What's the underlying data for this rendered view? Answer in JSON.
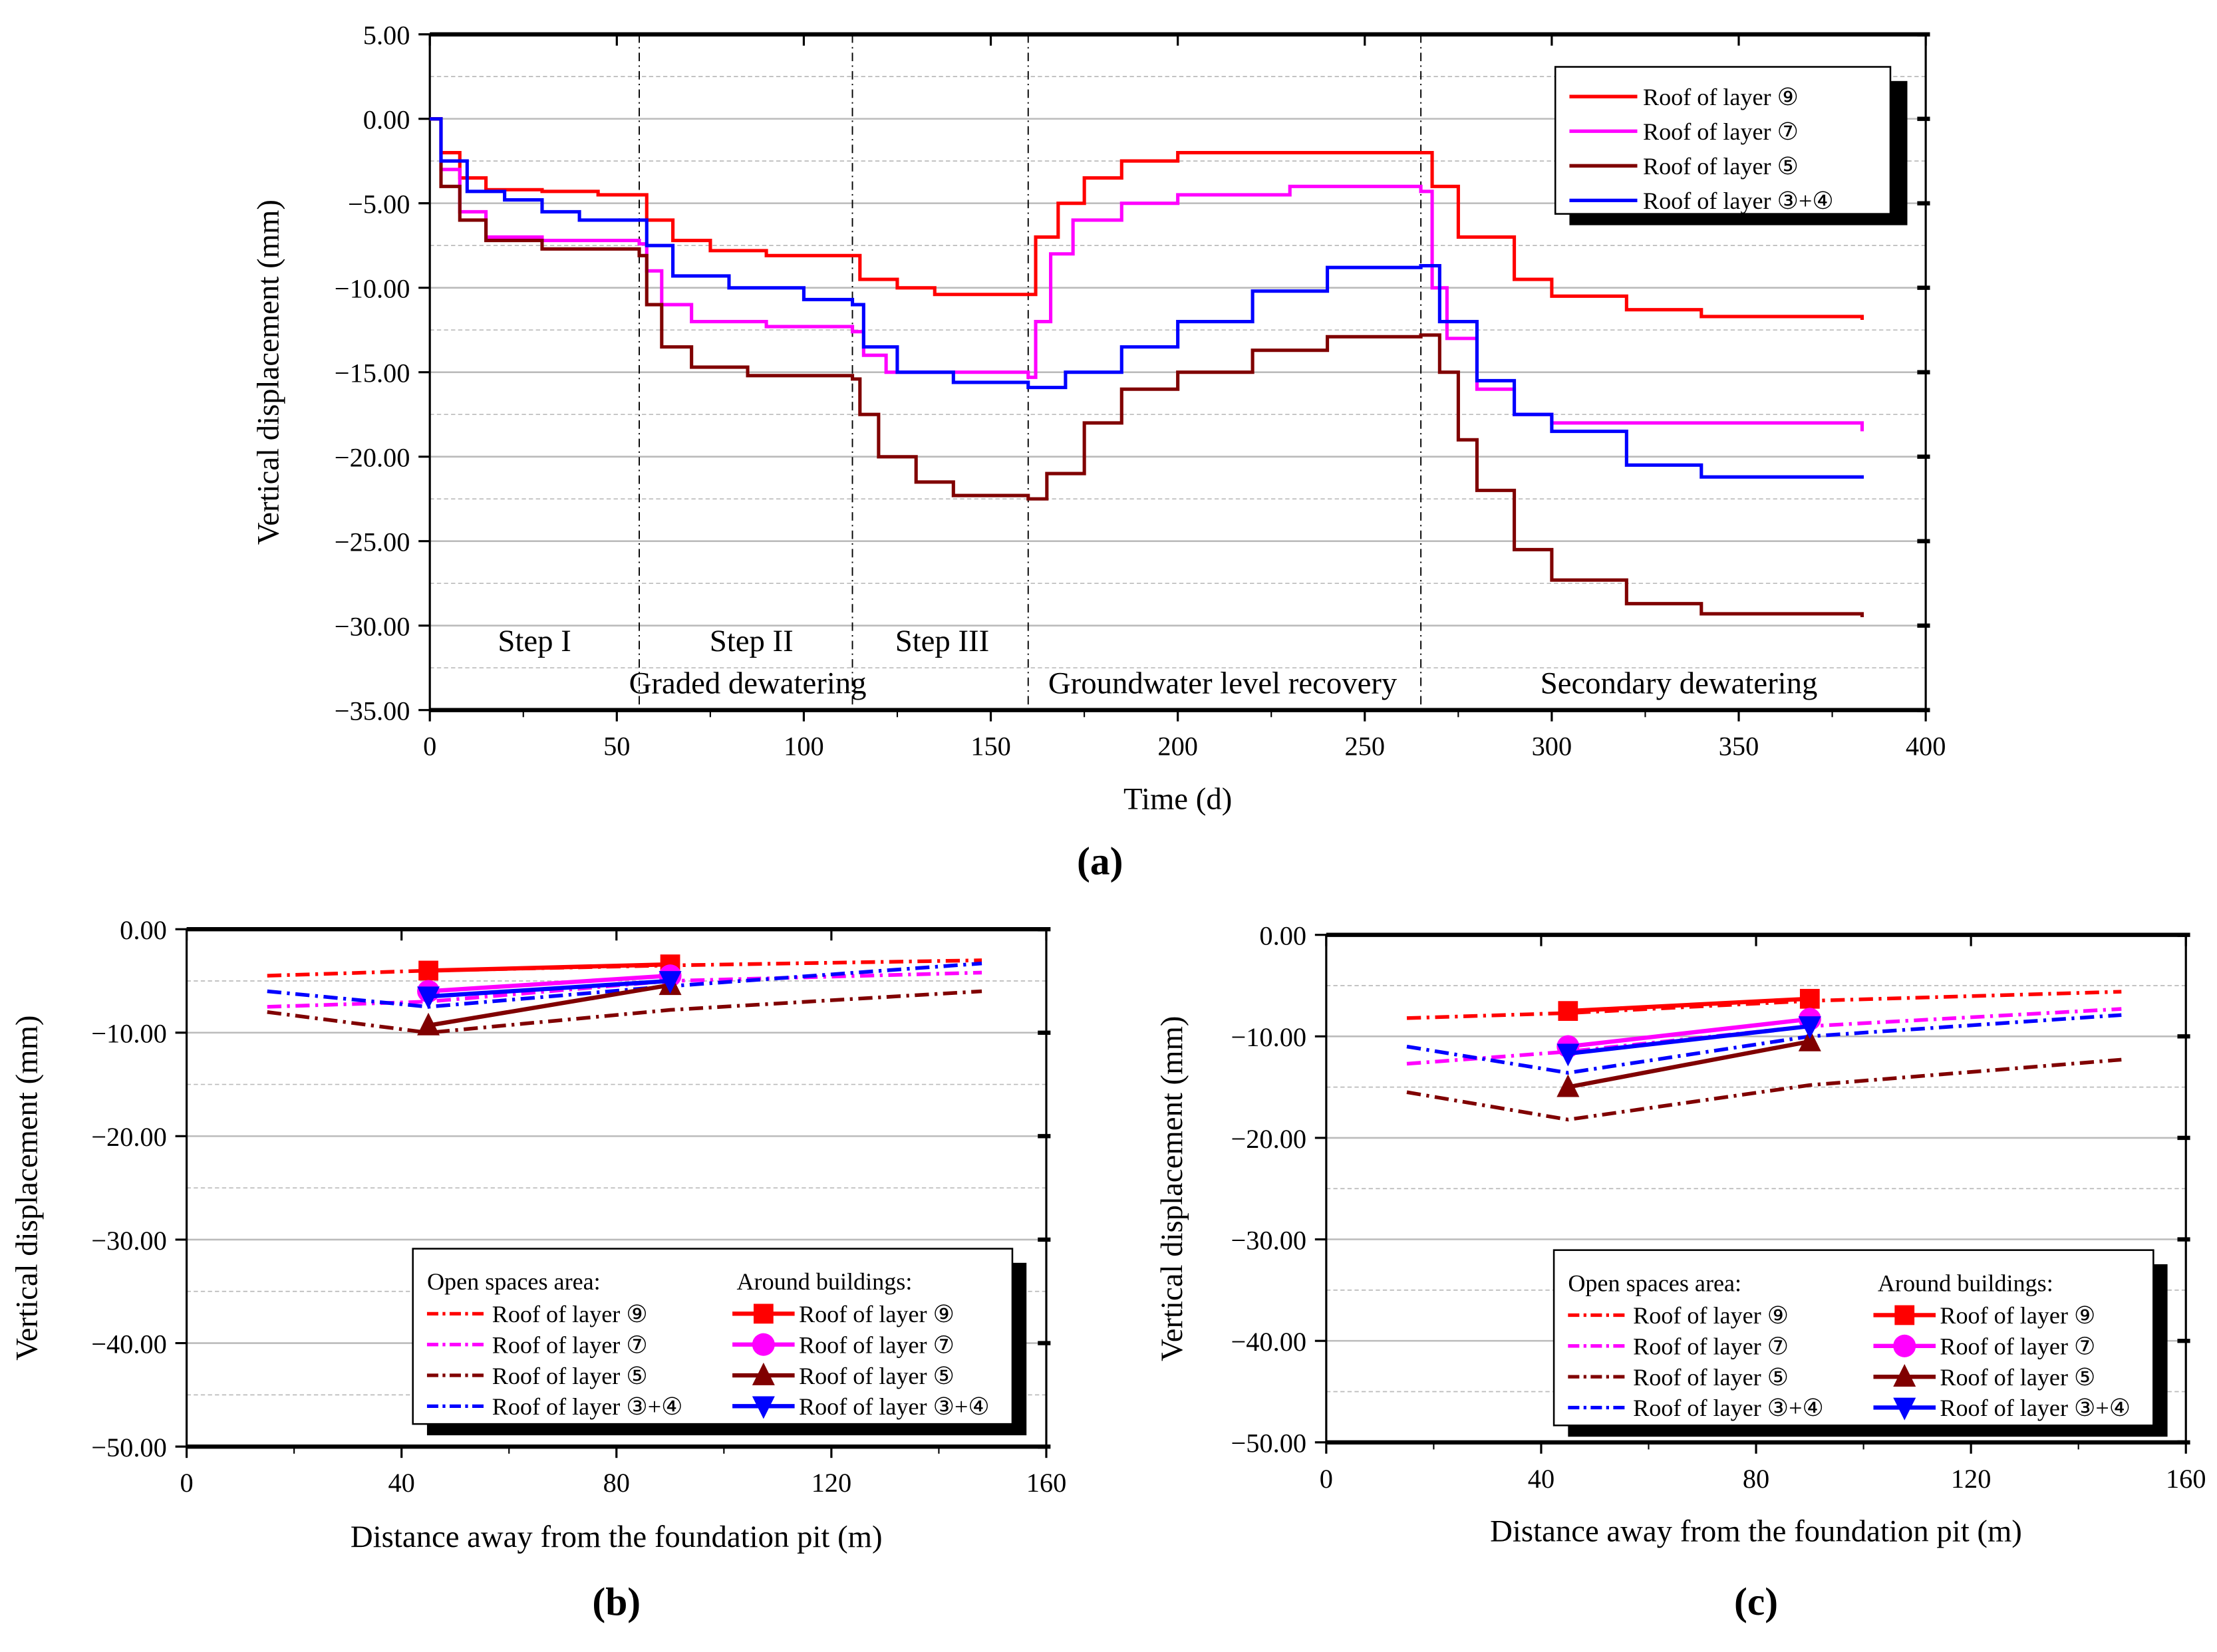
{
  "colors": {
    "layer9": "#ff0000",
    "layer7": "#ff00ff",
    "layer5": "#800000",
    "layer34": "#0000ff"
  },
  "chart_data": [
    {
      "id": "a",
      "type": "line",
      "panel_label": "(a)",
      "xlabel": "Time (d)",
      "ylabel": "Vertical displacement (mm)",
      "xlim": [
        0,
        400
      ],
      "ylim": [
        -35,
        5
      ],
      "xticks": [
        0,
        50,
        100,
        150,
        200,
        250,
        300,
        350,
        400
      ],
      "yticks": [
        5,
        0,
        -5,
        -10,
        -15,
        -20,
        -25,
        -30,
        -35
      ],
      "ytick_labels": [
        "5.00",
        "0.00",
        "−5.00",
        "−10.00",
        "−15.00",
        "−20.00",
        "−25.00",
        "−30.00",
        "−35.00"
      ],
      "grid": true,
      "legend_position": "top-right",
      "phase_boundaries": [
        56,
        113,
        160,
        265
      ],
      "step_labels": [
        {
          "text": "Step I",
          "x": 28
        },
        {
          "text": "Step II",
          "x": 86
        },
        {
          "text": "Step III",
          "x": 137
        }
      ],
      "phase_labels": [
        {
          "text": "Graded dewatering",
          "x": 85
        },
        {
          "text": "Groundwater level recovery",
          "x": 212
        },
        {
          "text": "Secondary dewatering",
          "x": 334
        }
      ],
      "series": [
        {
          "name": "Roof of layer ⑨",
          "color_key": "layer9",
          "points": [
            [
              0,
              0
            ],
            [
              3,
              -2
            ],
            [
              8,
              -3.5
            ],
            [
              15,
              -4.2
            ],
            [
              30,
              -4.3
            ],
            [
              45,
              -4.5
            ],
            [
              56,
              -4.5
            ],
            [
              58,
              -6
            ],
            [
              65,
              -7.2
            ],
            [
              75,
              -7.8
            ],
            [
              90,
              -8.1
            ],
            [
              113,
              -8.1
            ],
            [
              115,
              -9.5
            ],
            [
              125,
              -10
            ],
            [
              135,
              -10.4
            ],
            [
              160,
              -10.4
            ],
            [
              162,
              -7
            ],
            [
              168,
              -5
            ],
            [
              175,
              -3.5
            ],
            [
              185,
              -2.5
            ],
            [
              200,
              -2
            ],
            [
              265,
              -2
            ],
            [
              268,
              -4
            ],
            [
              275,
              -7
            ],
            [
              290,
              -9.5
            ],
            [
              300,
              -10.5
            ],
            [
              320,
              -11.3
            ],
            [
              340,
              -11.7
            ],
            [
              383,
              -11.9
            ]
          ]
        },
        {
          "name": "Roof of layer ⑦",
          "color_key": "layer7",
          "points": [
            [
              0,
              0
            ],
            [
              3,
              -3
            ],
            [
              8,
              -5.5
            ],
            [
              15,
              -7
            ],
            [
              30,
              -7.2
            ],
            [
              56,
              -7.4
            ],
            [
              58,
              -9
            ],
            [
              62,
              -11
            ],
            [
              70,
              -12
            ],
            [
              90,
              -12.3
            ],
            [
              113,
              -12.6
            ],
            [
              116,
              -14
            ],
            [
              122,
              -15
            ],
            [
              130,
              -15
            ],
            [
              160,
              -15.3
            ],
            [
              162,
              -12
            ],
            [
              166,
              -8
            ],
            [
              172,
              -6
            ],
            [
              185,
              -5
            ],
            [
              200,
              -4.5
            ],
            [
              230,
              -4
            ],
            [
              265,
              -4.3
            ],
            [
              268,
              -10
            ],
            [
              272,
              -13
            ],
            [
              280,
              -16
            ],
            [
              290,
              -17.5
            ],
            [
              300,
              -18
            ],
            [
              383,
              -18.5
            ]
          ]
        },
        {
          "name": "Roof of layer ⑤",
          "color_key": "layer5",
          "points": [
            [
              0,
              0
            ],
            [
              3,
              -4
            ],
            [
              8,
              -6
            ],
            [
              15,
              -7.2
            ],
            [
              30,
              -7.7
            ],
            [
              56,
              -8.1
            ],
            [
              58,
              -11
            ],
            [
              62,
              -13.5
            ],
            [
              70,
              -14.7
            ],
            [
              85,
              -15.2
            ],
            [
              113,
              -15.4
            ],
            [
              115,
              -17.5
            ],
            [
              120,
              -20
            ],
            [
              130,
              -21.5
            ],
            [
              140,
              -22.3
            ],
            [
              160,
              -22.5
            ],
            [
              165,
              -21
            ],
            [
              175,
              -18
            ],
            [
              185,
              -16
            ],
            [
              200,
              -15
            ],
            [
              220,
              -13.7
            ],
            [
              240,
              -12.9
            ],
            [
              265,
              -12.8
            ],
            [
              270,
              -15
            ],
            [
              275,
              -19
            ],
            [
              280,
              -22
            ],
            [
              290,
              -25.5
            ],
            [
              300,
              -27.3
            ],
            [
              320,
              -28.7
            ],
            [
              340,
              -29.3
            ],
            [
              383,
              -29.5
            ]
          ]
        },
        {
          "name": "Roof of layer ③+④",
          "color_key": "layer34",
          "points": [
            [
              0,
              0
            ],
            [
              3,
              -2.5
            ],
            [
              10,
              -4.3
            ],
            [
              20,
              -4.8
            ],
            [
              30,
              -5.5
            ],
            [
              40,
              -6
            ],
            [
              56,
              -6
            ],
            [
              58,
              -7.5
            ],
            [
              65,
              -9.3
            ],
            [
              80,
              -10
            ],
            [
              100,
              -10.7
            ],
            [
              113,
              -11
            ],
            [
              116,
              -13.5
            ],
            [
              125,
              -15
            ],
            [
              140,
              -15.6
            ],
            [
              160,
              -15.9
            ],
            [
              170,
              -15
            ],
            [
              185,
              -13.5
            ],
            [
              200,
              -12
            ],
            [
              220,
              -10.2
            ],
            [
              240,
              -8.8
            ],
            [
              265,
              -8.7
            ],
            [
              270,
              -12
            ],
            [
              280,
              -15.5
            ],
            [
              290,
              -17.5
            ],
            [
              300,
              -18.5
            ],
            [
              320,
              -20.5
            ],
            [
              340,
              -21.2
            ],
            [
              383,
              -21.3
            ]
          ]
        }
      ]
    },
    {
      "id": "b",
      "type": "line",
      "panel_label": "(b)",
      "xlabel": "Distance away from the foundation pit (m)",
      "ylabel": "Vertical displacement (mm)",
      "xlim": [
        0,
        160
      ],
      "ylim": [
        -50,
        0
      ],
      "xticks": [
        0,
        40,
        80,
        120,
        160
      ],
      "yticks": [
        0,
        -10,
        -20,
        -30,
        -40,
        -50
      ],
      "ytick_labels": [
        "0.00",
        "−10.00",
        "−20.00",
        "−30.00",
        "−40.00",
        "−50.00"
      ],
      "grid": true,
      "legend_position": "bottom-right",
      "legend_heads": [
        "Open spaces area:",
        "Around buildings:"
      ],
      "open_series": [
        {
          "name": "Roof of layer ⑨",
          "color_key": "layer9",
          "points": [
            [
              15,
              -4.5
            ],
            [
              45,
              -4
            ],
            [
              90,
              -3.5
            ],
            [
              148,
              -3
            ]
          ]
        },
        {
          "name": "Roof of layer ⑦",
          "color_key": "layer7",
          "points": [
            [
              15,
              -7.5
            ],
            [
              45,
              -7
            ],
            [
              90,
              -5
            ],
            [
              148,
              -4.2
            ]
          ]
        },
        {
          "name": "Roof of layer ⑤",
          "color_key": "layer5",
          "points": [
            [
              15,
              -8
            ],
            [
              45,
              -10
            ],
            [
              90,
              -7.8
            ],
            [
              148,
              -6
            ]
          ]
        },
        {
          "name": "Roof of layer ③+④",
          "color_key": "layer34",
          "points": [
            [
              15,
              -6
            ],
            [
              45,
              -7.5
            ],
            [
              90,
              -5.5
            ],
            [
              148,
              -3.3
            ]
          ]
        }
      ],
      "building_series": [
        {
          "name": "Roof of layer ⑨",
          "color_key": "layer9",
          "marker": "square",
          "points": [
            [
              45,
              -4
            ],
            [
              90,
              -3.4
            ]
          ]
        },
        {
          "name": "Roof of layer ⑦",
          "color_key": "layer7",
          "marker": "circle",
          "points": [
            [
              45,
              -6
            ],
            [
              90,
              -4.5
            ]
          ]
        },
        {
          "name": "Roof of layer ⑤",
          "color_key": "layer5",
          "marker": "triangle-up",
          "points": [
            [
              45,
              -9.3
            ],
            [
              90,
              -5.4
            ]
          ]
        },
        {
          "name": "Roof of layer ③+④",
          "color_key": "layer34",
          "marker": "triangle-down",
          "points": [
            [
              45,
              -6.5
            ],
            [
              90,
              -5
            ]
          ]
        }
      ]
    },
    {
      "id": "c",
      "type": "line",
      "panel_label": "(c)",
      "xlabel": "Distance away from the foundation pit (m)",
      "ylabel": "Vertical displacement (mm)",
      "xlim": [
        0,
        160
      ],
      "ylim": [
        -50,
        0
      ],
      "xticks": [
        0,
        40,
        80,
        120,
        160
      ],
      "yticks": [
        0,
        -10,
        -20,
        -30,
        -40,
        -50
      ],
      "ytick_labels": [
        "0.00",
        "−10.00",
        "−20.00",
        "−30.00",
        "−40.00",
        "−50.00"
      ],
      "grid": true,
      "legend_position": "bottom-right",
      "legend_heads": [
        "Open spaces area:",
        "Around buildings:"
      ],
      "open_series": [
        {
          "name": "Roof of layer ⑨",
          "color_key": "layer9",
          "points": [
            [
              15,
              -8.2
            ],
            [
              45,
              -7.7
            ],
            [
              90,
              -6.5
            ],
            [
              148,
              -5.6
            ]
          ]
        },
        {
          "name": "Roof of layer ⑦",
          "color_key": "layer7",
          "points": [
            [
              15,
              -12.7
            ],
            [
              45,
              -11.5
            ],
            [
              90,
              -9
            ],
            [
              148,
              -7.3
            ]
          ]
        },
        {
          "name": "Roof of layer ⑤",
          "color_key": "layer5",
          "points": [
            [
              15,
              -15.5
            ],
            [
              45,
              -18.2
            ],
            [
              90,
              -14.8
            ],
            [
              148,
              -12.3
            ]
          ]
        },
        {
          "name": "Roof of layer ③+④",
          "color_key": "layer34",
          "points": [
            [
              15,
              -11
            ],
            [
              45,
              -13.6
            ],
            [
              90,
              -10
            ],
            [
              148,
              -7.9
            ]
          ]
        }
      ],
      "building_series": [
        {
          "name": "Roof of layer ⑨",
          "color_key": "layer9",
          "marker": "square",
          "points": [
            [
              45,
              -7.5
            ],
            [
              90,
              -6.3
            ]
          ]
        },
        {
          "name": "Roof of layer ⑦",
          "color_key": "layer7",
          "marker": "circle",
          "points": [
            [
              45,
              -11
            ],
            [
              90,
              -8.3
            ]
          ]
        },
        {
          "name": "Roof of layer ⑤",
          "color_key": "layer5",
          "marker": "triangle-up",
          "points": [
            [
              45,
              -15
            ],
            [
              90,
              -10.5
            ]
          ]
        },
        {
          "name": "Roof of layer ③+④",
          "color_key": "layer34",
          "marker": "triangle-down",
          "points": [
            [
              45,
              -11.7
            ],
            [
              90,
              -9
            ]
          ]
        }
      ]
    }
  ]
}
